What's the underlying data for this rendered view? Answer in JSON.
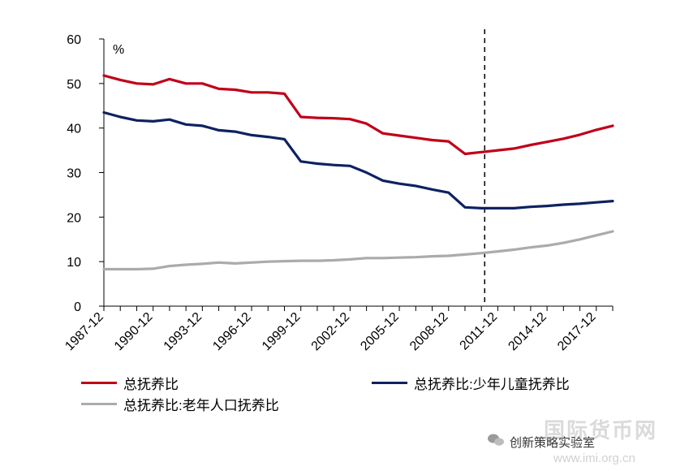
{
  "chart_data": {
    "type": "line",
    "unit_label": "%",
    "ylim": [
      0,
      60
    ],
    "y_ticks": [
      "0",
      "10",
      "20",
      "30",
      "40",
      "50",
      "60"
    ],
    "x_tick_labels": [
      "1987-12",
      "1990-12",
      "1993-12",
      "1996-12",
      "1999-12",
      "2002-12",
      "2005-12",
      "2008-12",
      "2011-12",
      "2014-12",
      "2017-12"
    ],
    "x_years": [
      1987,
      1988,
      1989,
      1990,
      1991,
      1992,
      1993,
      1994,
      1995,
      1996,
      1997,
      1998,
      1999,
      2000,
      2001,
      2002,
      2003,
      2004,
      2005,
      2006,
      2007,
      2008,
      2009,
      2010,
      2011,
      2012,
      2013,
      2014,
      2015,
      2016,
      2017,
      2018
    ],
    "vertical_line_year": 2010.2,
    "grid": false,
    "series": [
      {
        "name": "总抚养比",
        "color": "#C00018",
        "values": [
          51.8,
          50.8,
          50.0,
          49.8,
          51.0,
          50.0,
          50.0,
          48.8,
          48.6,
          48.0,
          48.0,
          47.7,
          42.5,
          42.3,
          42.2,
          42.0,
          41.0,
          38.8,
          38.3,
          37.8,
          37.3,
          37.0,
          34.2,
          34.6,
          35.0,
          35.4,
          36.2,
          36.9,
          37.6,
          38.5,
          39.6,
          40.5
        ]
      },
      {
        "name": "总抚养比:少年儿童抚养比",
        "color": "#0D2260",
        "values": [
          43.5,
          42.5,
          41.7,
          41.5,
          41.9,
          40.8,
          40.5,
          39.5,
          39.2,
          38.4,
          38.0,
          37.5,
          32.5,
          32.0,
          31.7,
          31.5,
          30.0,
          28.2,
          27.5,
          27.0,
          26.2,
          25.5,
          22.2,
          22.0,
          22.0,
          22.0,
          22.3,
          22.5,
          22.8,
          23.0,
          23.3,
          23.6
        ]
      },
      {
        "name": "总抚养比:老年人口抚养比",
        "color": "#ABABAB",
        "values": [
          8.3,
          8.3,
          8.3,
          8.4,
          9.0,
          9.3,
          9.5,
          9.8,
          9.6,
          9.8,
          10.0,
          10.1,
          10.2,
          10.2,
          10.3,
          10.5,
          10.8,
          10.8,
          10.9,
          11.0,
          11.2,
          11.3,
          11.6,
          11.9,
          12.3,
          12.7,
          13.2,
          13.6,
          14.2,
          15.0,
          15.9,
          16.8
        ]
      }
    ]
  },
  "watermark": {
    "account_name": "创新策略实验室",
    "site_seal": "国际货币网",
    "site_url": "www.imi.org.cn"
  }
}
